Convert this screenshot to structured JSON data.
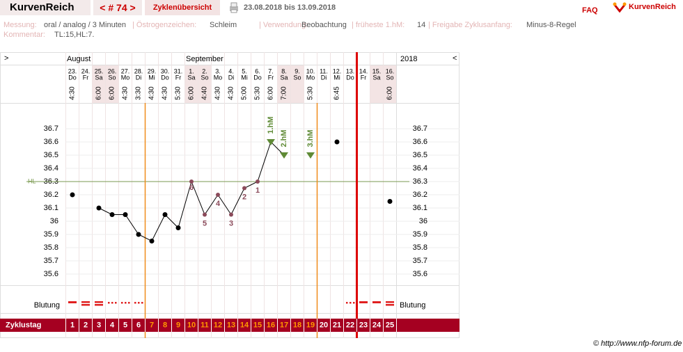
{
  "header": {
    "brand": "KurvenReich",
    "cycle_nav": "< # 74 >",
    "overview": "Zyklenübersicht",
    "date_range": "23.08.2018 bis 13.09.2018",
    "faq": "FAQ",
    "logo": "KurvenReich"
  },
  "info": {
    "items": [
      {
        "label": "Messung:",
        "value": "oral / analog / 3 Minuten"
      },
      {
        "label": "| Östrogenzeichen:",
        "value": "Schleim"
      },
      {
        "label": "| Verwendung:",
        "value": "Beobachtung"
      },
      {
        "label": "| früheste 1.hM:",
        "value": "14"
      },
      {
        "label": "| Freigabe Zyklusanfang:",
        "value": "Minus-8-Regel"
      }
    ],
    "comment_label": "Kommentar:",
    "comment": "TL:15,HL:7."
  },
  "chart_data": {
    "type": "line",
    "nav_left": ">",
    "nav_right": "<",
    "months": [
      "August",
      "September"
    ],
    "year": "2018",
    "days": [
      "23.",
      "24.",
      "25.",
      "26.",
      "27.",
      "28.",
      "29.",
      "30.",
      "31.",
      "1.",
      "2.",
      "3.",
      "4.",
      "5.",
      "6.",
      "7.",
      "8.",
      "9.",
      "10.",
      "11.",
      "12.",
      "13.",
      "14.",
      "15.",
      "16."
    ],
    "weekdays": [
      "Do",
      "Fr",
      "Sa",
      "So",
      "Mo",
      "Di",
      "Mi",
      "Do",
      "Fr",
      "Sa",
      "So",
      "Mo",
      "Di",
      "Mi",
      "Do",
      "Fr",
      "Sa",
      "So",
      "Mo",
      "Di",
      "Mi",
      "Do",
      "Fr",
      "Sa",
      "So"
    ],
    "times": [
      "4:30",
      null,
      "6:00",
      "6:00",
      "4:30",
      "3:30",
      "4:30",
      "4:30",
      "5:30",
      "6:00",
      "4:40",
      "4:30",
      "4:30",
      "5:00",
      "5:30",
      "6:00",
      "7:00",
      null,
      "5:30",
      null,
      "6:45",
      null,
      null,
      null,
      "6:00"
    ],
    "values": [
      36.2,
      null,
      36.1,
      36.05,
      36.05,
      35.9,
      35.85,
      36.05,
      35.95,
      36.3,
      36.05,
      36.2,
      36.05,
      36.25,
      36.3,
      36.6,
      36.5,
      null,
      36.5,
      null,
      36.6,
      null,
      null,
      null,
      36.15
    ],
    "point_labels": [
      null,
      null,
      null,
      null,
      null,
      null,
      null,
      null,
      null,
      "6",
      "5",
      "4",
      "3",
      "2",
      "1",
      null,
      null,
      null,
      null,
      null,
      null,
      null,
      null,
      null,
      null
    ],
    "hm_labels": [
      null,
      null,
      null,
      null,
      null,
      null,
      null,
      null,
      null,
      null,
      null,
      null,
      null,
      null,
      null,
      "1.hM",
      "2.hM",
      null,
      "3.hM",
      null,
      null,
      null,
      null,
      null,
      null
    ],
    "color": "#000000",
    "label_color": "#8b4a5a",
    "hm_color": "#5f8a35",
    "ylim": [
      35.5,
      36.8
    ],
    "yticks": [
      36.7,
      36.6,
      36.5,
      36.4,
      36.3,
      36.2,
      36.1,
      36,
      35.9,
      35.8,
      35.7,
      35.6
    ],
    "cover_line": {
      "label": "HL",
      "value": 36.3,
      "color": "#7a9a50"
    },
    "bleeding_label": "Blutung",
    "cycle_day_label": "Zyklustag",
    "cycle_days": [
      1,
      2,
      3,
      4,
      5,
      6,
      7,
      8,
      9,
      10,
      11,
      12,
      13,
      14,
      15,
      16,
      17,
      18,
      19,
      20,
      21,
      22,
      23,
      24,
      25
    ]
  },
  "footer": "© http://www.nfp-forum.de"
}
